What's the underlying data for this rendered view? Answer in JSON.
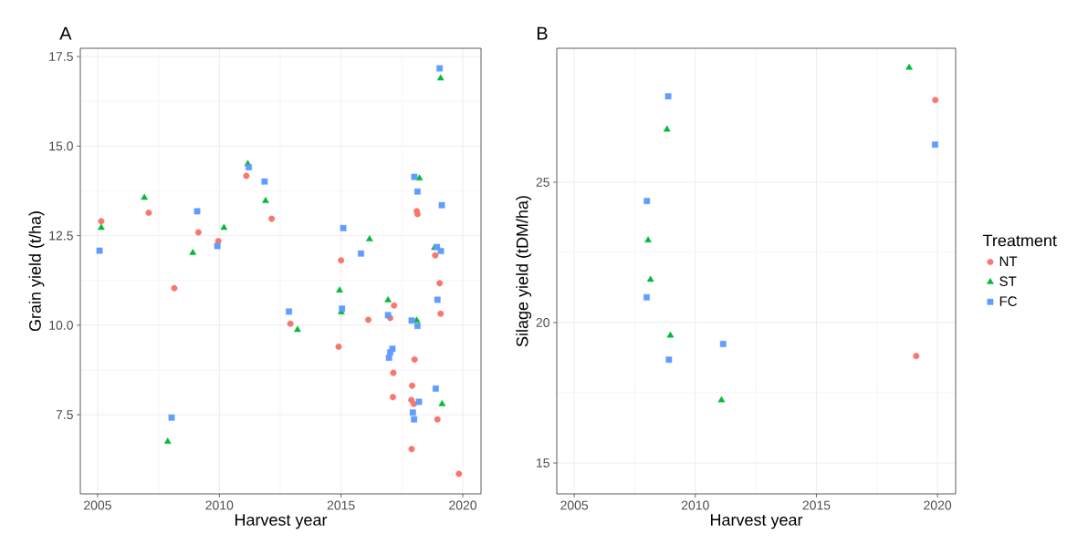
{
  "chart_data": [
    {
      "type": "scatter",
      "title": "A",
      "xlabel": "Harvest year",
      "ylabel": "Grain yield (t/ha)",
      "xlim": [
        2004.29,
        2020.75
      ],
      "ylim": [
        5.29,
        17.73
      ],
      "xticks": [
        2005,
        2010,
        2015,
        2020
      ],
      "yticks": [
        {
          "value": 7.5,
          "label": "7.5"
        },
        {
          "value": 10,
          "label": "10.0"
        },
        {
          "value": 12.5,
          "label": "12.5"
        },
        {
          "value": 15,
          "label": "15.0"
        },
        {
          "value": 17.5,
          "label": "17.5"
        }
      ],
      "grid": true,
      "series": [
        {
          "color": "#f8766d",
          "marker": "circle",
          "x": [
            2005.15,
            2007.1,
            2008.15,
            2009.14,
            2009.96,
            2011.11,
            2012.15,
            2015.0,
            2018.11,
            2018.14,
            2018.87,
            2019.05,
            2017.18,
            2019.09,
            2012.92,
            2016.12,
            2017.02,
            2014.9,
            2018.02,
            2017.15,
            2017.92,
            2017.13,
            2017.89,
            2017.99,
            2018.96,
            2017.9,
            2019.84
          ],
          "values": [
            12.9,
            13.14,
            11.03,
            12.59,
            12.35,
            14.17,
            12.97,
            11.81,
            13.18,
            13.1,
            11.95,
            11.17,
            10.55,
            10.32,
            10.04,
            10.15,
            10.2,
            9.4,
            9.04,
            8.67,
            8.31,
            7.99,
            7.91,
            7.8,
            7.37,
            6.54,
            5.85
          ]
        },
        {
          "color": "#00ba38",
          "marker": "triangle",
          "x": [
            2005.15,
            2006.92,
            2007.88,
            2008.91,
            2010.19,
            2011.17,
            2011.9,
            2019.09,
            2018.22,
            2016.17,
            2018.84,
            2014.94,
            2016.93,
            2015.01,
            2018.11,
            2013.21,
            2019.15
          ],
          "values": [
            12.72,
            13.56,
            6.75,
            12.02,
            12.72,
            14.5,
            13.47,
            16.89,
            14.1,
            12.4,
            12.16,
            10.97,
            10.7,
            10.36,
            10.13,
            9.87,
            7.8
          ]
        },
        {
          "color": "#619cff",
          "marker": "square",
          "x": [
            2005.08,
            2008.04,
            2009.09,
            2009.92,
            2011.21,
            2011.86,
            2019.05,
            2018.01,
            2018.14,
            2019.14,
            2015.09,
            2015.82,
            2018.94,
            2019.1,
            2018.96,
            2012.86,
            2015.04,
            2016.93,
            2017.9,
            2018.14,
            2017.11,
            2017.02,
            2016.97,
            2018.89,
            2018.2,
            2017.95,
            2018.0
          ],
          "values": [
            12.08,
            7.42,
            13.18,
            12.21,
            14.41,
            14.01,
            17.17,
            14.14,
            13.73,
            13.35,
            12.71,
            12.0,
            12.18,
            12.07,
            10.71,
            10.38,
            10.46,
            10.28,
            10.13,
            9.98,
            9.34,
            9.24,
            9.09,
            8.23,
            7.86,
            7.56,
            7.37
          ]
        }
      ]
    },
    {
      "type": "scatter",
      "title": "B",
      "xlabel": "Harvest year",
      "ylabel": "Silage yield (tDM/ha)",
      "xlim": [
        2004.28,
        2020.75
      ],
      "ylim": [
        13.9,
        29.77
      ],
      "xticks": [
        2005,
        2010,
        2015,
        2020
      ],
      "yticks": [
        15,
        20,
        25
      ],
      "grid": true,
      "legend": "right",
      "legend_title": "Treatment",
      "series": [
        {
          "name": "NT",
          "color": "#f8766d",
          "marker": "circle",
          "x": [
            2019.91,
            2019.12
          ],
          "values": [
            27.93,
            18.81
          ]
        },
        {
          "name": "ST",
          "color": "#00ba38",
          "marker": "triangle",
          "x": [
            2018.83,
            2008.83,
            2008.05,
            2008.15,
            2008.97,
            2011.08
          ],
          "values": [
            29.08,
            26.88,
            22.93,
            21.53,
            19.54,
            17.24
          ]
        },
        {
          "name": "FC",
          "color": "#619cff",
          "marker": "square",
          "x": [
            2019.9,
            2008.88,
            2008.0,
            2007.99,
            2011.15,
            2008.91
          ],
          "values": [
            26.34,
            28.06,
            24.33,
            20.9,
            19.24,
            18.68
          ]
        }
      ]
    }
  ]
}
